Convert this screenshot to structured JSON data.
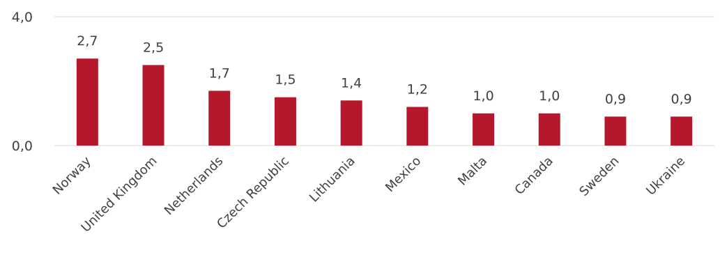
{
  "chart_data": {
    "type": "bar",
    "categories": [
      "Norway",
      "United Kingdom",
      "Netherlands",
      "Czech Republic",
      "Lithuania",
      "Mexico",
      "Malta",
      "Canada",
      "Sweden",
      "Ukraine"
    ],
    "values": [
      2.7,
      2.5,
      1.7,
      1.5,
      1.4,
      1.2,
      1.0,
      1.0,
      0.9,
      0.9
    ],
    "value_labels": [
      "2,7",
      "2,5",
      "1,7",
      "1,5",
      "1,4",
      "1,2",
      "1,0",
      "1,0",
      "0,9",
      "0,9"
    ],
    "ylim": [
      0,
      4
    ],
    "yticks": [
      0,
      4
    ],
    "ytick_labels": [
      "0,0",
      "4,0"
    ],
    "grid": true,
    "bar_color": "#b5182b",
    "grid_color": "#d9d9d9",
    "text_color": "#404040"
  }
}
